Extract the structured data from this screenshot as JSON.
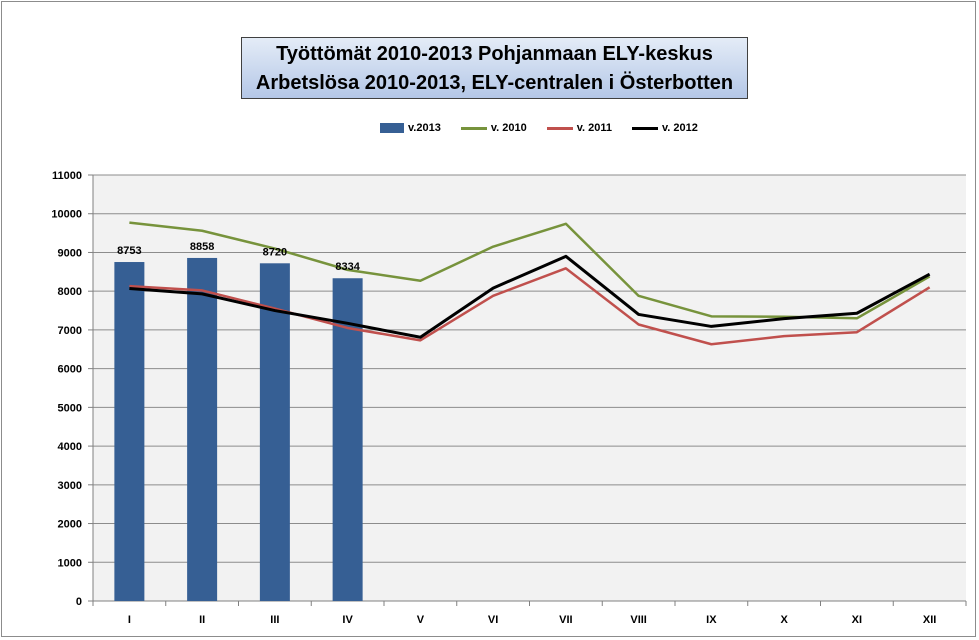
{
  "chart_data": {
    "type": "bar+line",
    "title_line1": "Työttömät 2010-2013  Pohjanmaan ELY-keskus",
    "title_line2": "Arbetslösa 2010-2013, ELY-centralen i Österbotten",
    "categories": [
      "I",
      "II",
      "III",
      "IV",
      "V",
      "VI",
      "VII",
      "VIII",
      "IX",
      "X",
      "XI",
      "XII"
    ],
    "ylim": [
      0,
      11000
    ],
    "yticks": [
      "0",
      "1000",
      "2000",
      "3000",
      "4000",
      "5000",
      "6000",
      "7000",
      "8000",
      "9000",
      "10000",
      "11000"
    ],
    "grid": true,
    "legend_position": "top",
    "bars": {
      "name": "v.2013",
      "color": "#365f94",
      "values": [
        8753,
        8858,
        8720,
        8334
      ],
      "labels": [
        "8753",
        "8858",
        "8720",
        "8334"
      ]
    },
    "series": [
      {
        "name": "v. 2010",
        "color": "#77933c",
        "values": [
          9770,
          9560,
          9100,
          8550,
          8270,
          9150,
          9740,
          7880,
          7350,
          7340,
          7300,
          8380
        ]
      },
      {
        "name": "v. 2011",
        "color": "#c0504d",
        "values": [
          8130,
          8020,
          7550,
          7050,
          6730,
          7880,
          8590,
          7140,
          6630,
          6840,
          6940,
          8100
        ]
      },
      {
        "name": "v. 2012",
        "color": "#000000",
        "values": [
          8070,
          7930,
          7500,
          7170,
          6810,
          8080,
          8900,
          7400,
          7090,
          7290,
          7430,
          8440
        ]
      }
    ]
  }
}
